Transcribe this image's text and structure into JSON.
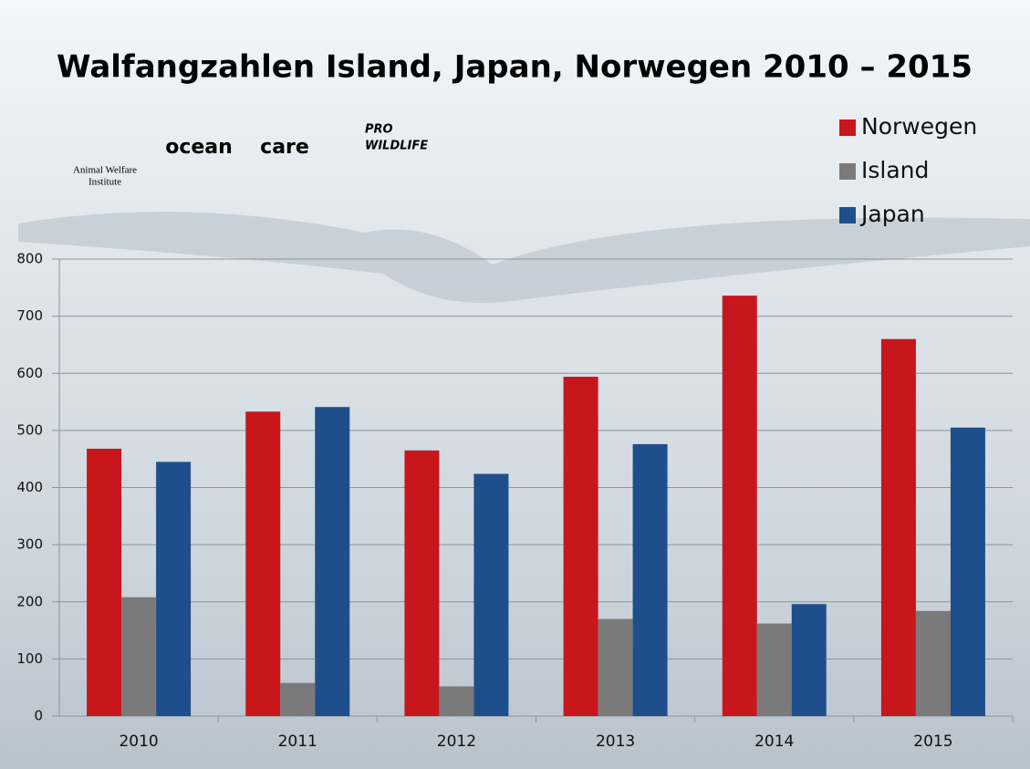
{
  "chart_data": {
    "type": "bar",
    "title": "Walfangzahlen Island, Japan, Norwegen 2010 – 2015",
    "logos": [
      "Animal Welfare",
      "Institute",
      "ocean",
      "care",
      "PRO",
      "WILDLIFE"
    ],
    "categories": [
      "2010",
      "2011",
      "2012",
      "2013",
      "2014",
      "2015"
    ],
    "series": [
      {
        "name": "Norwegen",
        "color": "#c8161d",
        "values": [
          468,
          533,
          465,
          594,
          736,
          660
        ]
      },
      {
        "name": "Island",
        "color": "#7a7a7a",
        "values": [
          208,
          58,
          52,
          170,
          162,
          184
        ]
      },
      {
        "name": "Japan",
        "color": "#1f4e8c",
        "values": [
          445,
          541,
          424,
          476,
          196,
          505
        ]
      }
    ],
    "ylim": [
      0,
      800
    ],
    "yticks": [
      0,
      100,
      200,
      300,
      400,
      500,
      600,
      700,
      800
    ],
    "grid": true,
    "legend": "top-right"
  }
}
